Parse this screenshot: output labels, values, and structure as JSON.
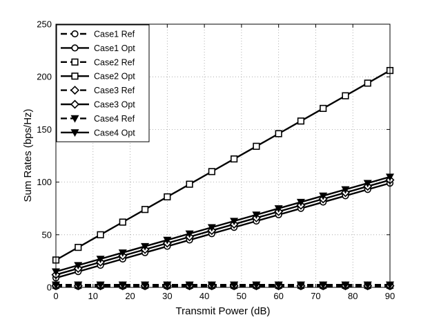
{
  "chart_data": {
    "type": "line",
    "title": "",
    "xlabel": "Transmit Power (dB)",
    "ylabel": "Sum Rates (bps/Hz)",
    "xlim": [
      0,
      90
    ],
    "ylim": [
      0,
      250
    ],
    "xticks": [
      0,
      10,
      20,
      30,
      40,
      50,
      60,
      70,
      80,
      90
    ],
    "yticks": [
      0,
      50,
      100,
      150,
      200,
      250
    ],
    "grid": true,
    "legend_position": "top-left",
    "x": [
      0,
      6,
      12,
      18,
      24,
      30,
      36,
      42,
      48,
      54,
      60,
      66,
      72,
      78,
      84,
      90
    ],
    "series": [
      {
        "name": "Case1 Ref",
        "marker": "circle",
        "style": "dashed",
        "values": [
          1,
          1,
          1,
          1,
          1,
          1,
          1,
          1,
          1,
          1,
          1,
          1,
          1,
          1,
          1,
          1
        ]
      },
      {
        "name": "Case1 Opt",
        "marker": "circle",
        "style": "solid",
        "values": [
          9,
          15,
          21,
          27,
          33,
          39,
          45,
          51,
          57,
          63,
          69,
          75,
          81,
          87,
          93,
          99
        ]
      },
      {
        "name": "Case2 Ref",
        "marker": "square",
        "style": "dashed",
        "values": [
          2,
          2,
          2,
          2,
          2,
          2,
          2,
          2,
          2,
          2,
          2,
          2,
          2,
          2,
          2,
          2
        ]
      },
      {
        "name": "Case2 Opt",
        "marker": "square",
        "style": "solid",
        "values": [
          26,
          38,
          50,
          62,
          74,
          86,
          98,
          110,
          122,
          134,
          146,
          158,
          170,
          182,
          194,
          206
        ]
      },
      {
        "name": "Case3 Ref",
        "marker": "diamond",
        "style": "dashed",
        "values": [
          1.5,
          1.5,
          1.5,
          1.5,
          1.5,
          1.5,
          1.5,
          1.5,
          1.5,
          1.5,
          1.5,
          1.5,
          1.5,
          1.5,
          1.5,
          1.5
        ]
      },
      {
        "name": "Case3 Opt",
        "marker": "diamond",
        "style": "solid",
        "values": [
          12,
          18,
          24,
          30,
          36,
          42,
          48,
          54,
          60,
          66,
          72,
          78,
          84,
          90,
          96,
          102
        ]
      },
      {
        "name": "Case4 Ref",
        "marker": "triangle-down",
        "style": "dashed",
        "values": [
          2.5,
          2.5,
          2.5,
          2.5,
          2.5,
          2.5,
          2.5,
          2.5,
          2.5,
          2.5,
          2.5,
          2.5,
          2.5,
          2.5,
          2.5,
          2.5
        ]
      },
      {
        "name": "Case4 Opt",
        "marker": "triangle-down",
        "style": "solid",
        "values": [
          15,
          21,
          27,
          33,
          39,
          45,
          51,
          57,
          63,
          69,
          75,
          81,
          87,
          93,
          99,
          105
        ]
      }
    ],
    "colors": {
      "line": "#000000",
      "grid": "#9a9a9a",
      "background": "#ffffff"
    }
  }
}
